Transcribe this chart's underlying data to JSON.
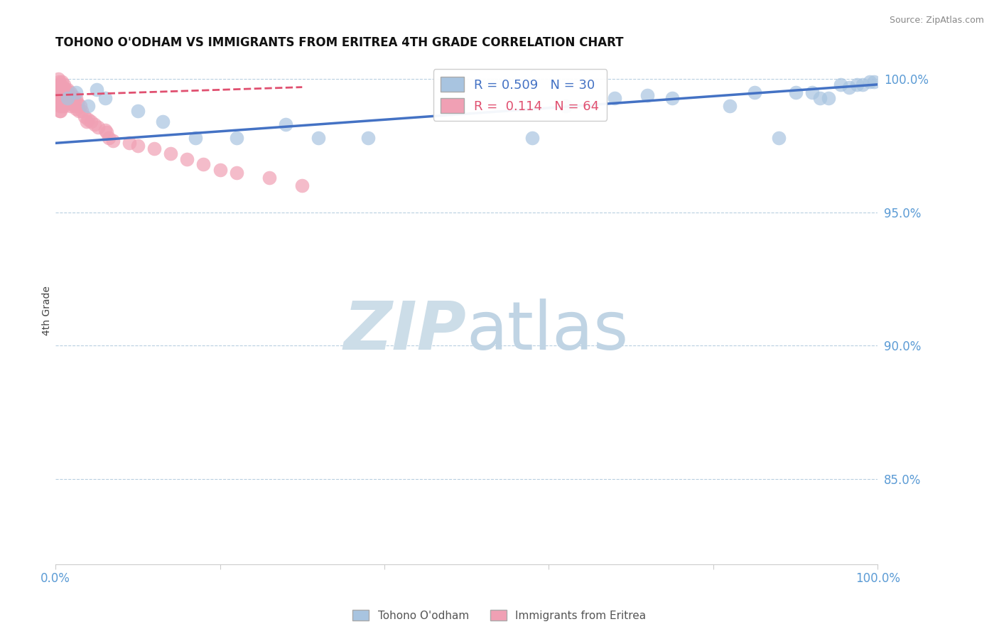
{
  "title": "TOHONO O'ODHAM VS IMMIGRANTS FROM ERITREA 4TH GRADE CORRELATION CHART",
  "source": "Source: ZipAtlas.com",
  "ylabel": "4th Grade",
  "xmin": 0.0,
  "xmax": 1.0,
  "ymin": 0.818,
  "ymax": 1.008,
  "yticks": [
    0.85,
    0.9,
    0.95,
    1.0
  ],
  "ytick_labels": [
    "85.0%",
    "90.0%",
    "95.0%",
    "100.0%"
  ],
  "xticks": [
    0.0,
    0.2,
    0.4,
    0.6,
    0.8,
    1.0
  ],
  "xtick_labels": [
    "0.0%",
    "",
    "",
    "",
    "",
    "100.0%"
  ],
  "blue_R": 0.509,
  "blue_N": 30,
  "pink_R": 0.114,
  "pink_N": 64,
  "blue_color": "#a8c4e0",
  "pink_color": "#f0a0b4",
  "blue_line_color": "#4472c4",
  "pink_line_color": "#e05070",
  "tick_color": "#5b9bd5",
  "grid_color": "#b8cfe0",
  "watermark_zip_color": "#ccdde8",
  "watermark_atlas_color": "#c0d4e4",
  "legend_label_blue": "Tohono O'odham",
  "legend_label_pink": "Immigrants from Eritrea",
  "blue_scatter_x": [
    0.015,
    0.025,
    0.04,
    0.05,
    0.06,
    0.1,
    0.13,
    0.17,
    0.22,
    0.28,
    0.32,
    0.38,
    0.58,
    0.62,
    0.68,
    0.72,
    0.75,
    0.82,
    0.85,
    0.88,
    0.9,
    0.92,
    0.93,
    0.94,
    0.955,
    0.965,
    0.975,
    0.982,
    0.99,
    0.995
  ],
  "blue_scatter_y": [
    0.993,
    0.995,
    0.99,
    0.996,
    0.993,
    0.988,
    0.984,
    0.978,
    0.978,
    0.983,
    0.978,
    0.978,
    0.978,
    0.99,
    0.993,
    0.994,
    0.993,
    0.99,
    0.995,
    0.978,
    0.995,
    0.995,
    0.993,
    0.993,
    0.998,
    0.997,
    0.998,
    0.998,
    0.999,
    0.999
  ],
  "pink_scatter_x": [
    0.003,
    0.004,
    0.004,
    0.004,
    0.005,
    0.005,
    0.005,
    0.005,
    0.005,
    0.005,
    0.006,
    0.006,
    0.006,
    0.007,
    0.007,
    0.008,
    0.008,
    0.008,
    0.009,
    0.009,
    0.01,
    0.01,
    0.01,
    0.011,
    0.011,
    0.012,
    0.013,
    0.014,
    0.015,
    0.015,
    0.016,
    0.017,
    0.018,
    0.018,
    0.02,
    0.021,
    0.022,
    0.023,
    0.025,
    0.025,
    0.027,
    0.028,
    0.03,
    0.032,
    0.035,
    0.038,
    0.04,
    0.043,
    0.047,
    0.052,
    0.06,
    0.062,
    0.065,
    0.07,
    0.09,
    0.1,
    0.12,
    0.14,
    0.16,
    0.18,
    0.2,
    0.22,
    0.26,
    0.3
  ],
  "pink_scatter_y": [
    1.0,
    0.999,
    0.998,
    0.997,
    0.996,
    0.995,
    0.993,
    0.991,
    0.99,
    0.988,
    0.998,
    0.993,
    0.988,
    0.997,
    0.992,
    0.999,
    0.995,
    0.99,
    0.997,
    0.993,
    0.998,
    0.994,
    0.99,
    0.996,
    0.991,
    0.996,
    0.993,
    0.994,
    0.996,
    0.991,
    0.994,
    0.993,
    0.995,
    0.99,
    0.994,
    0.991,
    0.993,
    0.99,
    0.993,
    0.989,
    0.991,
    0.988,
    0.99,
    0.988,
    0.986,
    0.984,
    0.985,
    0.984,
    0.983,
    0.982,
    0.981,
    0.98,
    0.978,
    0.977,
    0.976,
    0.975,
    0.974,
    0.972,
    0.97,
    0.968,
    0.966,
    0.965,
    0.963,
    0.96
  ],
  "blue_trend_x": [
    0.0,
    1.0
  ],
  "blue_trend_y": [
    0.976,
    0.998
  ],
  "pink_trend_x": [
    0.0,
    0.3
  ],
  "pink_trend_y": [
    0.994,
    0.997
  ]
}
